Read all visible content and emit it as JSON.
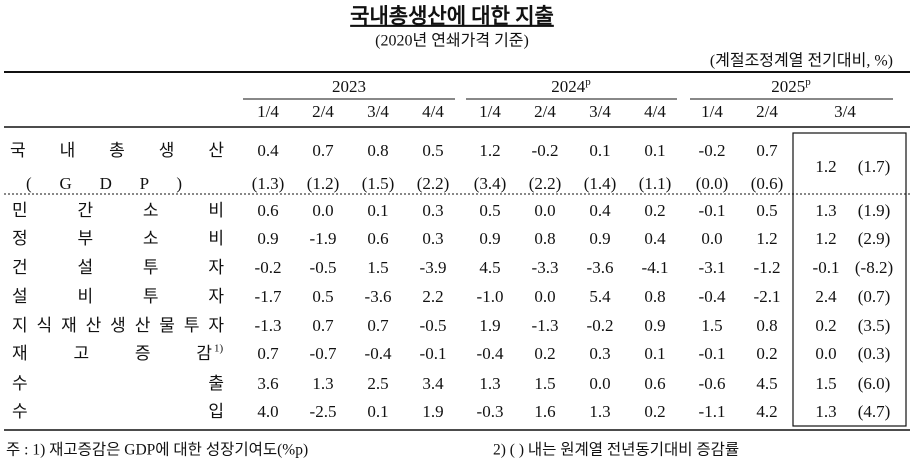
{
  "header": {
    "title": "국내총생산에 대한 지출",
    "subtitle": "(2020년 연쇄가격 기준)",
    "unit": "(계절조정계열 전기대비, %)",
    "years": [
      {
        "label": "2023"
      },
      {
        "label": "2024",
        "mark": "p"
      },
      {
        "label": "2025",
        "mark": "p"
      }
    ],
    "quarters": [
      "1/4",
      "2/4",
      "3/4",
      "4/4",
      "1/4",
      "2/4",
      "3/4",
      "4/4",
      "1/4",
      "2/4",
      "3/4"
    ]
  },
  "table": {
    "gdp": {
      "label": "국 내 총 생 산",
      "sublabel": "( G D P )",
      "values": [
        "0.4",
        "0.7",
        "0.8",
        "0.5",
        "1.2",
        "-0.2",
        "0.1",
        "0.1",
        "-0.2",
        "0.7",
        "1.2"
      ],
      "yoy": [
        "(1.3)",
        "(1.2)",
        "(1.5)",
        "(2.2)",
        "(3.4)",
        "(2.2)",
        "(1.4)",
        "(1.1)",
        "(0.0)",
        "(0.6)",
        "(1.7)"
      ]
    },
    "rows": [
      {
        "label": "민 간 소 비",
        "values": [
          "0.6",
          "0.0",
          "0.1",
          "0.3",
          "0.5",
          "0.0",
          "0.4",
          "0.2",
          "-0.1",
          "0.5",
          "1.3"
        ],
        "yoy": "(1.9)"
      },
      {
        "label": "정 부 소 비",
        "values": [
          "0.9",
          "-1.9",
          "0.6",
          "0.3",
          "0.9",
          "0.8",
          "0.9",
          "0.4",
          "0.0",
          "1.2",
          "1.2"
        ],
        "yoy": "(2.9)"
      },
      {
        "label": "건 설 투 자",
        "values": [
          "-0.2",
          "-0.5",
          "1.5",
          "-3.9",
          "4.5",
          "-3.3",
          "-3.6",
          "-4.1",
          "-3.1",
          "-1.2",
          "-0.1"
        ],
        "yoy": "(-8.2)"
      },
      {
        "label": "설 비 투 자",
        "values": [
          "-1.7",
          "0.5",
          "-3.6",
          "2.2",
          "-1.0",
          "0.0",
          "5.4",
          "0.8",
          "-0.4",
          "-2.1",
          "2.4"
        ],
        "yoy": "(0.7)"
      },
      {
        "label": "지식재산생산물투자",
        "values": [
          "-1.3",
          "0.7",
          "0.7",
          "-0.5",
          "1.9",
          "-1.3",
          "-0.2",
          "0.9",
          "1.5",
          "0.8",
          "0.2"
        ],
        "yoy": "(3.5)"
      },
      {
        "label": "재 고 증 감",
        "note": "1)",
        "values": [
          "0.7",
          "-0.7",
          "-0.4",
          "-0.1",
          "-0.4",
          "0.2",
          "0.3",
          "0.1",
          "-0.1",
          "0.2",
          "0.0"
        ],
        "yoy": "(0.3)"
      },
      {
        "label": "수 출",
        "values": [
          "3.6",
          "1.3",
          "2.5",
          "3.4",
          "1.3",
          "1.5",
          "0.0",
          "0.6",
          "-0.6",
          "4.5",
          "1.5"
        ],
        "yoy": "(6.0)"
      },
      {
        "label": "수 입",
        "values": [
          "4.0",
          "-2.5",
          "0.1",
          "1.9",
          "-0.3",
          "1.6",
          "1.3",
          "0.2",
          "-1.1",
          "4.2",
          "1.3"
        ],
        "yoy": "(4.7)"
      }
    ]
  },
  "footnotes": [
    "주 : 1) 재고증감은 GDP에 대한 성장기여도(%p)",
    "2) ( ) 내는 원계열 전년동기대비 증감률"
  ]
}
